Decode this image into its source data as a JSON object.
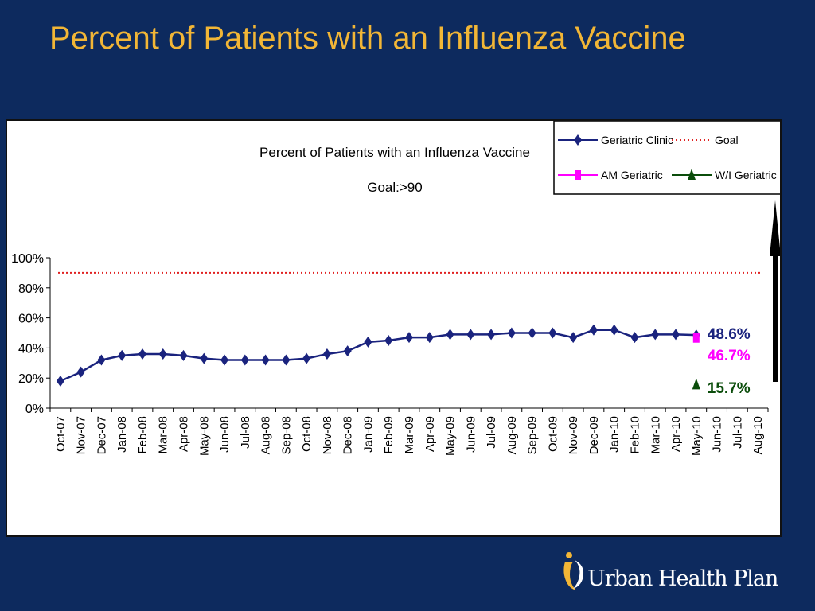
{
  "slide": {
    "title": "Percent of Patients with an Influenza Vaccine",
    "background_color": "#0d2a5e",
    "title_color": "#f2b636"
  },
  "chart_data": {
    "type": "line",
    "title": "Percent of Patients with an Influenza Vaccine",
    "subtitle": "Goal:>90",
    "xlabel": "",
    "ylabel": "",
    "ylim": [
      0,
      100
    ],
    "y_tick_labels": [
      "100%",
      "80%",
      "60%",
      "40%",
      "20%",
      "0%"
    ],
    "y_ticks": [
      100,
      80,
      60,
      40,
      20,
      0
    ],
    "categories": [
      "Oct-07",
      "Nov-07",
      "Dec-07",
      "Jan-08",
      "Feb-08",
      "Mar-08",
      "Apr-08",
      "May-08",
      "Jun-08",
      "Jul-08",
      "Aug-08",
      "Sep-08",
      "Oct-08",
      "Nov-08",
      "Dec-08",
      "Jan-09",
      "Feb-09",
      "Mar-09",
      "Apr-09",
      "May-09",
      "Jun-09",
      "Jul-09",
      "Aug-09",
      "Sep-09",
      "Oct-09",
      "Nov-09",
      "Dec-09",
      "Jan-10",
      "Feb-10",
      "Mar-10",
      "Apr-10",
      "May-10",
      "Jun-10",
      "Jul-10",
      "Aug-10"
    ],
    "series": [
      {
        "name": "Geriatric Clinic",
        "color": "#1a237e",
        "marker": "diamond",
        "values": [
          18,
          24,
          32,
          35,
          36,
          36,
          35,
          33,
          32,
          32,
          32,
          32,
          33,
          36,
          38,
          44,
          45,
          47,
          47,
          49,
          49,
          49,
          50,
          50,
          50,
          47,
          52,
          52,
          47,
          49,
          49,
          48.6,
          null,
          null,
          null
        ],
        "last_label": "48.6%"
      },
      {
        "name": "AM Geriatric",
        "color": "#ff00ff",
        "marker": "square",
        "values": [
          null,
          null,
          null,
          null,
          null,
          null,
          null,
          null,
          null,
          null,
          null,
          null,
          null,
          null,
          null,
          null,
          null,
          null,
          null,
          null,
          null,
          null,
          null,
          null,
          null,
          null,
          null,
          null,
          null,
          null,
          null,
          46.7,
          null,
          null,
          null
        ],
        "last_label": "46.7%"
      },
      {
        "name": "W/I Geriatric",
        "color": "#0b4d0b",
        "marker": "triangle",
        "values": [
          null,
          null,
          null,
          null,
          null,
          null,
          null,
          null,
          null,
          null,
          null,
          null,
          null,
          null,
          null,
          null,
          null,
          null,
          null,
          null,
          null,
          null,
          null,
          null,
          null,
          null,
          null,
          null,
          null,
          null,
          null,
          15.7,
          null,
          null,
          null
        ],
        "last_label": "15.7%"
      }
    ],
    "goal": {
      "name": "Goal",
      "value": 90,
      "color": "#e02020",
      "style": "dotted"
    },
    "legend": {
      "placement": "top-right",
      "entries": [
        "Geriatric Clinic",
        "Goal",
        "AM Geriatric",
        "W/I Geriatric"
      ]
    },
    "grid": false,
    "arrow": "up"
  },
  "logo": {
    "text": "Urban Health Plan"
  }
}
